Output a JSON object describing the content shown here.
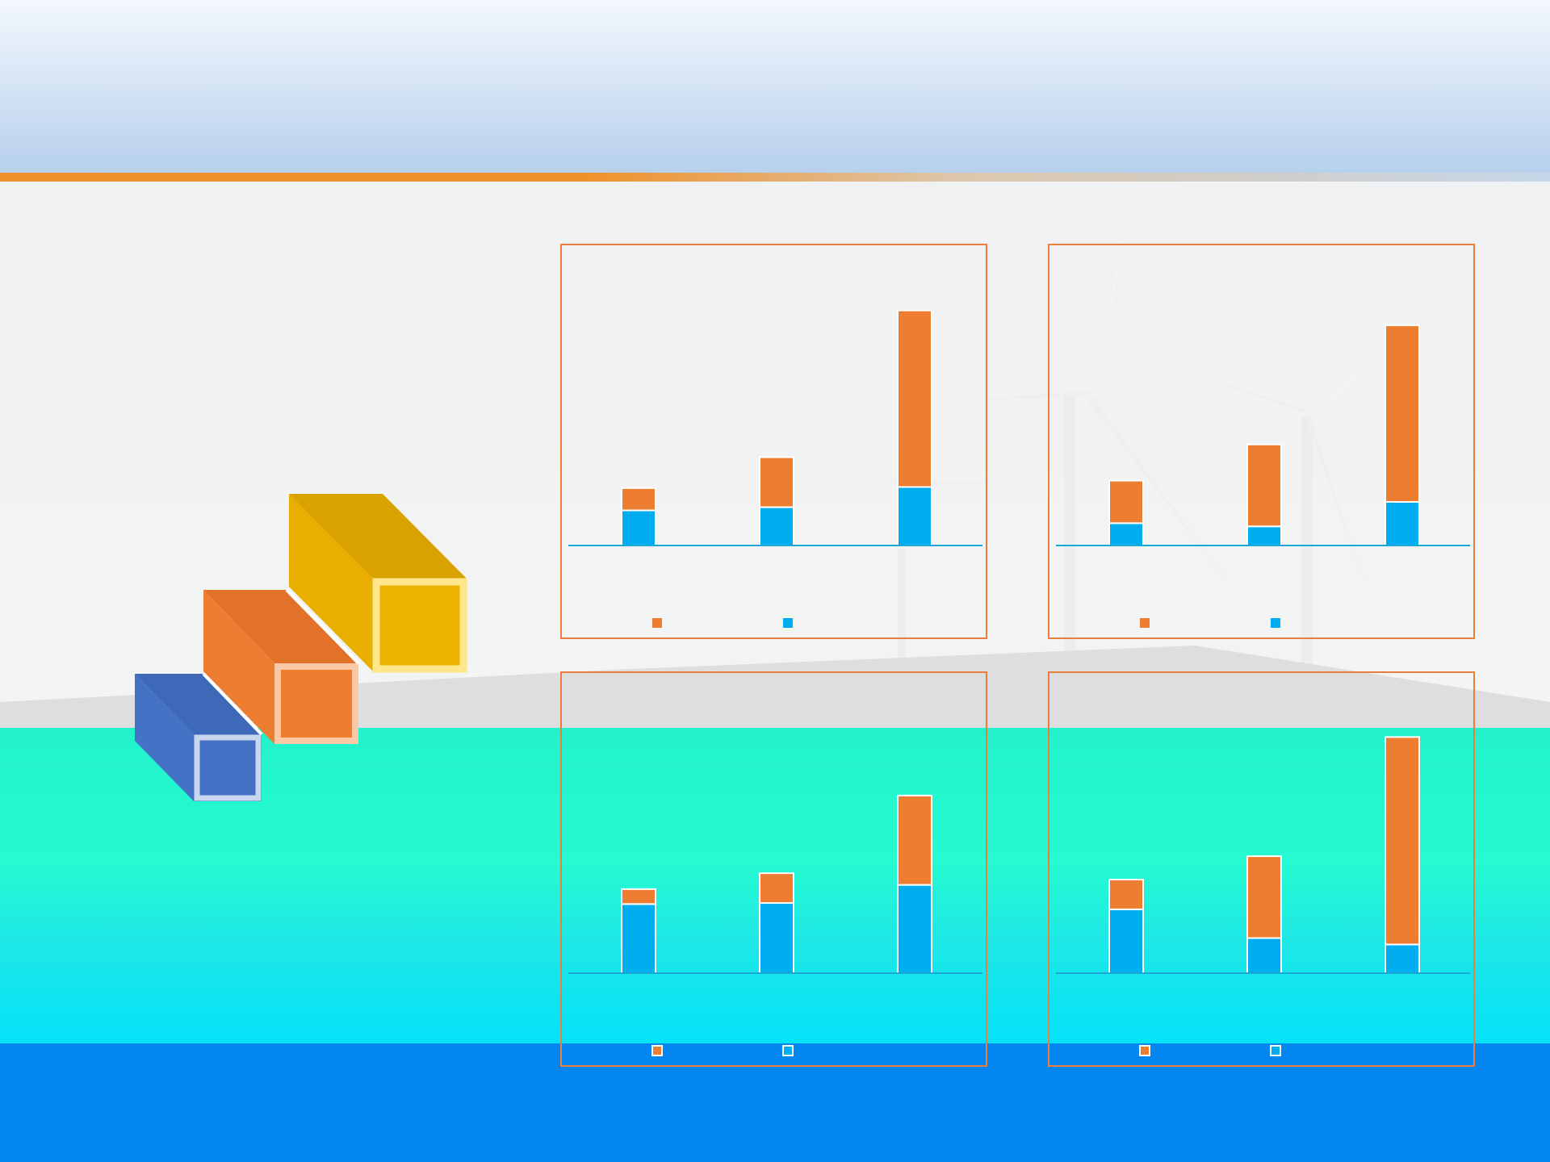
{
  "colors": {
    "series_top": "#ed7d31",
    "series_bottom": "#00aeef",
    "frame": "#e97f3c",
    "axis": "#1aa7d6",
    "block_yellow": "#ecb400",
    "block_orange": "#ed7d31",
    "block_blue": "#4472c4"
  },
  "decor": {
    "background": "wind-turbines-and-solar-panels-photo",
    "blocks_icon": "stacked-3d-blocks-icon"
  },
  "chart_data": [
    {
      "type": "bar",
      "stacked": true,
      "ylim": [
        0,
        220
      ],
      "legend": "bottom",
      "series": [
        {
          "values": [
            33,
            36,
            55
          ]
        },
        {
          "values": [
            21,
            47,
            166
          ]
        }
      ]
    },
    {
      "type": "bar",
      "stacked": true,
      "ylim": [
        0,
        220
      ],
      "legend": "bottom",
      "series": [
        {
          "values": [
            21,
            18,
            41
          ]
        },
        {
          "values": [
            40,
            77,
            166
          ]
        }
      ]
    },
    {
      "type": "bar",
      "stacked": true,
      "ylim": [
        0,
        220
      ],
      "legend": "bottom",
      "legend_marker": "outlined",
      "series": [
        {
          "values": [
            65,
            66,
            83
          ]
        },
        {
          "values": [
            14,
            28,
            84
          ]
        }
      ]
    },
    {
      "type": "bar",
      "stacked": true,
      "ylim": [
        0,
        220
      ],
      "legend": "bottom",
      "legend_marker": "outlined",
      "series": [
        {
          "values": [
            60,
            33,
            27
          ]
        },
        {
          "values": [
            28,
            77,
            195
          ]
        }
      ]
    }
  ]
}
